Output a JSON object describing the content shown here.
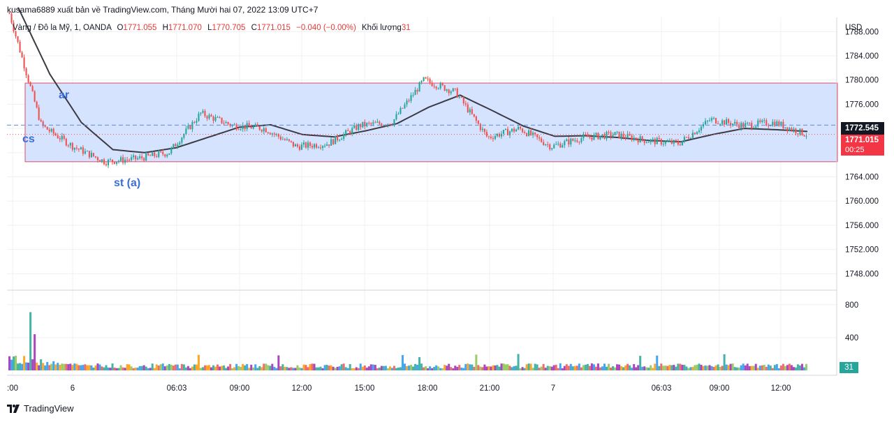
{
  "header": {
    "publisher_line": "kusama6889 xuất bản về TradingView.com, Tháng Mười hai 07, 2022 13:09 UTC+7"
  },
  "legend": {
    "symbol": "Vàng / Đô la Mỹ, 1, OANDA",
    "o_label": "O",
    "o_value": "1771.055",
    "h_label": "H",
    "h_value": "1771.070",
    "l_label": "L",
    "l_value": "1770.705",
    "c_label": "C",
    "c_value": "1771.015",
    "change": "−0.040 (−0.00%)",
    "volume_label": "Khối lượng",
    "volume_value": "31"
  },
  "price_tags": {
    "currency": "USD",
    "last_value": "1772.545",
    "current_value": "1771.015",
    "countdown": "00:25",
    "volume_value": "31"
  },
  "footer": {
    "brand": "TradingView"
  },
  "colors": {
    "up": "#26a69a",
    "down": "#ef5350",
    "ma": "#3b3b45",
    "range_fill": "#d6e3ff",
    "range_border": "#e04a6a",
    "annotation": "#3a6fd8",
    "grid": "#eef0f3"
  },
  "chart_data": [
    {
      "type": "line",
      "description_kind": "candlestick",
      "series": [
        {
          "name": "",
          "x": [
            "00:00",
            "01:30",
            "03:00",
            "04:30",
            "06:03",
            "07:30",
            "09:00",
            "10:30",
            "12:00",
            "13:30",
            "15:00",
            "16:30",
            "18:00",
            "19:30",
            "21:00",
            "22:30",
            "00:00",
            "01:30",
            "03:00",
            "04:30",
            "06:03",
            "07:30",
            "09:00",
            "10:30",
            "12:00",
            "12:40"
          ],
          "close": [
            1791.0,
            1772.5,
            1769.0,
            1766.5,
            1767.0,
            1768.0,
            1774.5,
            1772.5,
            1772.0,
            1769.0,
            1769.5,
            1772.5,
            1773.0,
            1780.0,
            1778.0,
            1770.5,
            1772.0,
            1769.0,
            1770.5,
            1771.0,
            1770.0,
            1769.5,
            1773.5,
            1772.5,
            1773.0,
            1771.0
          ]
        },
        {
          "name": "",
          "x": [
            "00:00",
            "01:30",
            "03:00",
            "04:30",
            "06:03",
            "07:30",
            "09:00",
            "10:30",
            "12:00",
            "13:30",
            "15:00",
            "16:30",
            "18:00",
            "19:30",
            "21:00",
            "22:30",
            "00:00",
            "01:30",
            "03:00",
            "04:30",
            "06:03",
            "07:30",
            "09:00",
            "10:30",
            "12:00",
            "12:40"
          ],
          "values": [
            1792.0,
            1781.0,
            1773.0,
            1768.5,
            1768.0,
            1768.8,
            1770.5,
            1772.2,
            1772.6,
            1771.0,
            1770.6,
            1771.6,
            1772.8,
            1775.5,
            1777.5,
            1775.0,
            1772.4,
            1770.7,
            1770.8,
            1770.5,
            1770.0,
            1769.8,
            1771.0,
            1772.0,
            1771.8,
            1771.5
          ]
        }
      ],
      "x_ticks": [
        ":00",
        "6",
        "06:03",
        "09:00",
        "12:00",
        "15:00",
        "18:00",
        "21:00",
        "7",
        "06:03",
        "09:00",
        "12:00"
      ],
      "y_ticks": [
        "1788.000",
        "1784.000",
        "1780.000",
        "1776.000",
        "1772.000",
        "1768.000",
        "1764.000",
        "1760.000",
        "1756.000",
        "1752.000",
        "1748.000"
      ],
      "ylim": [
        1745.5,
        1790.0
      ],
      "range_box": {
        "top": 1779.5,
        "bottom": 1766.5
      },
      "dashed_level": 1772.545,
      "dotted_level": 1771.015,
      "annotations": [
        {
          "text": "ar"
        },
        {
          "text": "cs"
        },
        {
          "text": "st (a)"
        }
      ],
      "grid": true
    },
    {
      "type": "bar",
      "y_ticks": [
        "800",
        "400"
      ],
      "ylim": [
        0,
        900
      ],
      "last_value": 31
    }
  ]
}
